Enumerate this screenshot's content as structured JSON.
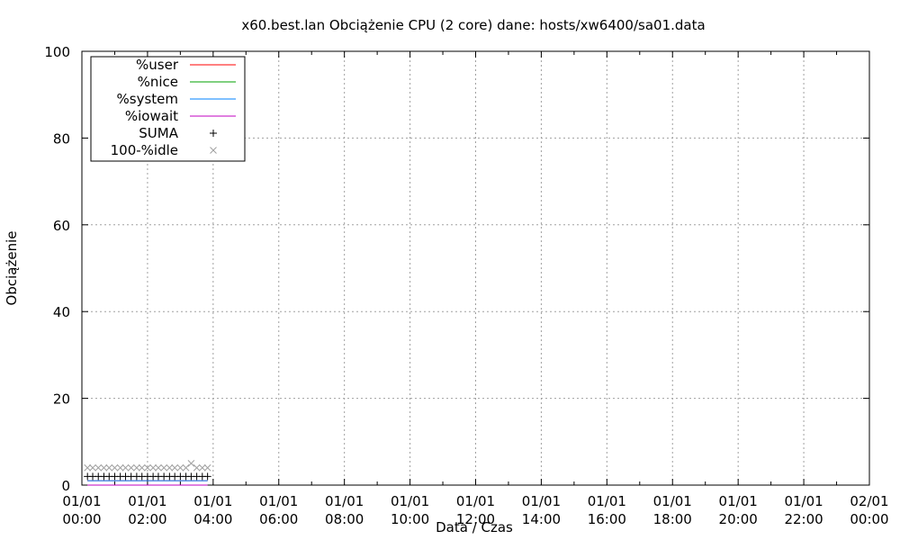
{
  "chart_data": {
    "type": "line",
    "title": "x60.best.lan Obciążenie CPU (2 core) dane: hosts/xw6400/sa01.data",
    "xlabel": "Data / Czas",
    "ylabel": "Obciążenie",
    "ylim": [
      0,
      100
    ],
    "yticks": [
      "0",
      "20",
      "40",
      "60",
      "80",
      "100"
    ],
    "xlim_hours": [
      0,
      24
    ],
    "xticks": [
      {
        "date": "01/01",
        "time": "00:00"
      },
      {
        "date": "01/01",
        "time": "02:00"
      },
      {
        "date": "01/01",
        "time": "04:00"
      },
      {
        "date": "01/01",
        "time": "06:00"
      },
      {
        "date": "01/01",
        "time": "08:00"
      },
      {
        "date": "01/01",
        "time": "10:00"
      },
      {
        "date": "01/01",
        "time": "12:00"
      },
      {
        "date": "01/01",
        "time": "14:00"
      },
      {
        "date": "01/01",
        "time": "16:00"
      },
      {
        "date": "01/01",
        "time": "18:00"
      },
      {
        "date": "01/01",
        "time": "20:00"
      },
      {
        "date": "01/01",
        "time": "22:00"
      },
      {
        "date": "02/01",
        "time": "00:00"
      }
    ],
    "grid": true,
    "legend_position": "top-left",
    "series": [
      {
        "name": "%user",
        "style": "line",
        "color": "#ff0000",
        "values": [
          1,
          1,
          1,
          1,
          1,
          1,
          1,
          1,
          1,
          1,
          1,
          1,
          1,
          1,
          1,
          1,
          1,
          1,
          1,
          1,
          1,
          1,
          1
        ]
      },
      {
        "name": "%nice",
        "style": "line",
        "color": "#00a000",
        "values": [
          0,
          0,
          0,
          0,
          0,
          0,
          0,
          0,
          0,
          0,
          0,
          0,
          0,
          0,
          0,
          0,
          0,
          0,
          0,
          0,
          0,
          0,
          0
        ]
      },
      {
        "name": "%system",
        "style": "line",
        "color": "#0080ff",
        "values": [
          1,
          1,
          1,
          1,
          1,
          1,
          1,
          1,
          1,
          1,
          1,
          1,
          1,
          1,
          1,
          1,
          1,
          1,
          1,
          1,
          1,
          1,
          1
        ]
      },
      {
        "name": "%iowait",
        "style": "line",
        "color": "#c000c0",
        "values": [
          0,
          0,
          0,
          0,
          0,
          0,
          0,
          0,
          0,
          0,
          0,
          0,
          0,
          0,
          0,
          0,
          0,
          0,
          0,
          0,
          0,
          0,
          0
        ]
      },
      {
        "name": "SUMA",
        "style": "plus",
        "color": "#000000",
        "values": [
          2,
          2,
          2,
          2,
          2,
          2,
          2,
          2,
          2,
          2,
          2,
          2,
          2,
          2,
          2,
          2,
          2,
          2,
          2,
          2,
          2,
          2,
          2
        ]
      },
      {
        "name": "100-%idle",
        "style": "cross",
        "color": "#a0a0a0",
        "values": [
          4,
          4,
          4,
          4,
          4,
          4,
          4,
          4,
          4,
          4,
          4,
          4,
          4,
          4,
          4,
          4,
          4,
          4,
          4,
          5,
          4,
          4,
          4
        ]
      }
    ],
    "x_hours": [
      0.17,
      0.33,
      0.5,
      0.67,
      0.83,
      1.0,
      1.17,
      1.33,
      1.5,
      1.67,
      1.83,
      2.0,
      2.17,
      2.33,
      2.5,
      2.67,
      2.83,
      3.0,
      3.17,
      3.33,
      3.5,
      3.67,
      3.83
    ]
  }
}
